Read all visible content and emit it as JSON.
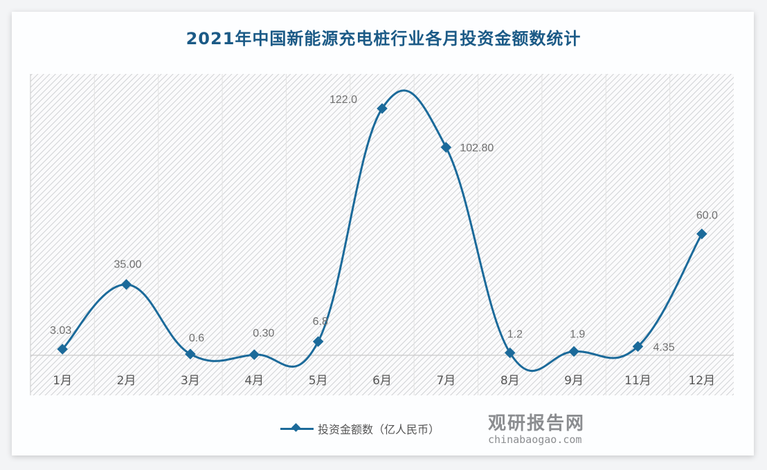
{
  "title": "2021年中国新能源充电桩行业各月投资金额数统计",
  "legend": {
    "label": "投资金额数（亿人民币）"
  },
  "watermark": {
    "cn": "观研报告网",
    "en": "chinabaogao.com"
  },
  "colors": {
    "series": "#1b6a9a",
    "title": "#1b5a86",
    "label": "#6f6f6f"
  },
  "chart_data": {
    "type": "line",
    "title": "2021年中国新能源充电桩行业各月投资金额数统计",
    "xlabel": "",
    "ylabel": "",
    "categories": [
      "1月",
      "2月",
      "3月",
      "4月",
      "5月",
      "6月",
      "7月",
      "8月",
      "9月",
      "11月",
      "12月"
    ],
    "series": [
      {
        "name": "投资金额数（亿人民币）",
        "values": [
          3.03,
          35.0,
          0.6,
          0.3,
          6.8,
          122.0,
          102.8,
          1.2,
          1.9,
          4.35,
          60.0
        ],
        "labels": [
          "3.03",
          "35.00",
          "0.6",
          "0.30",
          "6.8",
          "122.0",
          "102.80",
          "1.2",
          "1.9",
          "4.35",
          "60.0"
        ]
      }
    ],
    "smooth": true,
    "ylim": [
      0,
      130
    ],
    "grid": "vertical-category-bands",
    "legend_position": "bottom",
    "y_axis_visible": false
  }
}
